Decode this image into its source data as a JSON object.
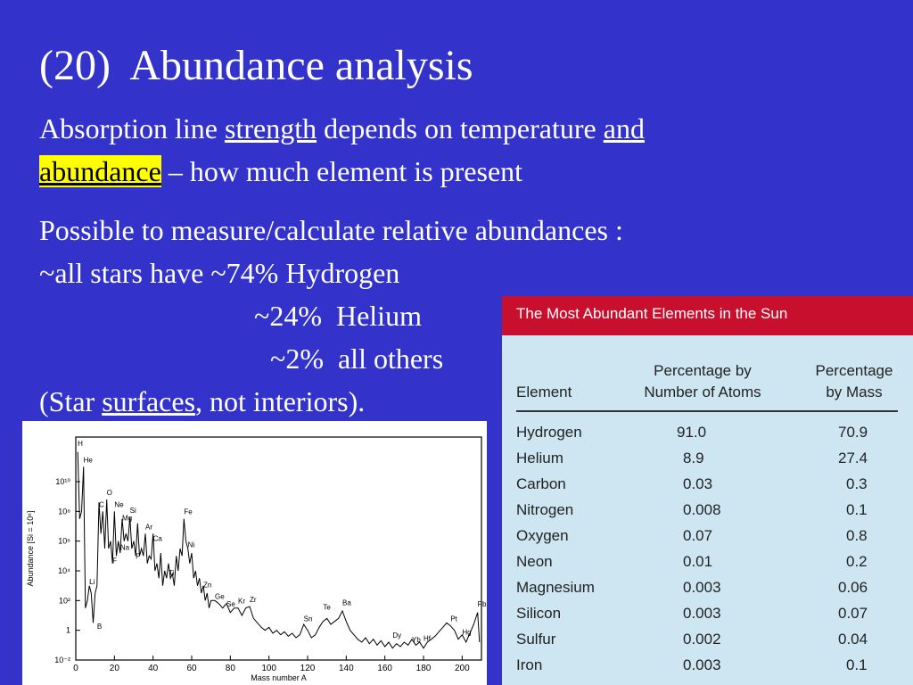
{
  "slide": {
    "title": "(20)  Abundance analysis",
    "line1": {
      "a": "Absorption line ",
      "b": "strength",
      "c": " depends on temperature ",
      "d": "and"
    },
    "line2": {
      "a": "abundance",
      "b": " – how much element is present"
    },
    "line3": "Possible to measure/calculate relative abundances :",
    "line4": "~all stars have ~74% Hydrogen",
    "line5": "~24%  Helium",
    "line6": "~2%  all others",
    "line7": {
      "a": "(Star ",
      "b": "surfaces",
      "c": ", not interiors)."
    },
    "highlight_color": "#ffff00",
    "background_color": "#3333cc"
  },
  "table": {
    "title": "The Most Abundant Elements in the Sun",
    "header_color": "#c8102e",
    "columns": {
      "element": "Element",
      "atoms_line1": "Percentage by",
      "atoms_line2": "Number of Atoms",
      "mass_line1": "Percentage",
      "mass_line2": "by Mass"
    },
    "rows": [
      {
        "element": "Hydrogen",
        "atoms": "91.0",
        "mass": "70.9"
      },
      {
        "element": "Helium",
        "atoms": "8.9",
        "mass": "27.4"
      },
      {
        "element": "Carbon",
        "atoms": "0.03",
        "mass": "0.3"
      },
      {
        "element": "Nitrogen",
        "atoms": "0.008",
        "mass": "0.1"
      },
      {
        "element": "Oxygen",
        "atoms": "0.07",
        "mass": "0.8"
      },
      {
        "element": "Neon",
        "atoms": "0.01",
        "mass": "0.2"
      },
      {
        "element": "Magnesium",
        "atoms": "0.003",
        "mass": "0.06"
      },
      {
        "element": "Silicon",
        "atoms": "0.003",
        "mass": "0.07"
      },
      {
        "element": "Sulfur",
        "atoms": "0.002",
        "mass": "0.04"
      },
      {
        "element": "Iron",
        "atoms": "0.003",
        "mass": "0.1"
      }
    ]
  },
  "chart_data": {
    "type": "line",
    "xlabel": "Mass number A",
    "ylabel": "Abundance [Si = 10⁶]",
    "xlim": [
      0,
      210
    ],
    "ylim_log10": [
      -2,
      13
    ],
    "x_ticks": [
      "0",
      "20",
      "40",
      "60",
      "80",
      "100",
      "120",
      "140",
      "160",
      "180",
      "200"
    ],
    "y_ticks": [
      "10⁻²",
      "1",
      "10²",
      "10⁴",
      "10⁶",
      "10⁸",
      "10¹⁰"
    ],
    "series": [
      {
        "log10_values": [
          [
            1,
            12.0
          ],
          [
            2,
            7.5
          ],
          [
            3,
            8.0
          ],
          [
            4,
            11.0
          ],
          [
            5,
            1.5
          ],
          [
            6,
            2.0
          ],
          [
            7,
            3.0
          ],
          [
            8,
            2.5
          ],
          [
            9,
            0.5
          ],
          [
            10,
            2.5
          ],
          [
            11,
            3.0
          ],
          [
            12,
            8.6
          ],
          [
            13,
            6.5
          ],
          [
            14,
            8.0
          ],
          [
            15,
            5.5
          ],
          [
            16,
            8.8
          ],
          [
            17,
            5.5
          ],
          [
            18,
            6.0
          ],
          [
            19,
            4.5
          ],
          [
            20,
            8.0
          ],
          [
            21,
            5.0
          ],
          [
            22,
            6.0
          ],
          [
            23,
            5.2
          ],
          [
            24,
            7.5
          ],
          [
            25,
            6.0
          ],
          [
            26,
            6.5
          ],
          [
            27,
            6.0
          ],
          [
            28,
            7.6
          ],
          [
            29,
            5.5
          ],
          [
            30,
            6.0
          ],
          [
            31,
            5.0
          ],
          [
            32,
            7.2
          ],
          [
            33,
            5.0
          ],
          [
            34,
            5.5
          ],
          [
            35,
            5.0
          ],
          [
            36,
            6.5
          ],
          [
            37,
            4.5
          ],
          [
            38,
            5.0
          ],
          [
            39,
            4.8
          ],
          [
            40,
            6.5
          ],
          [
            41,
            4.0
          ],
          [
            42,
            4.5
          ],
          [
            43,
            3.5
          ],
          [
            44,
            5.2
          ],
          [
            45,
            3.0
          ],
          [
            46,
            4.0
          ],
          [
            47,
            3.5
          ],
          [
            48,
            4.5
          ],
          [
            49,
            3.5
          ],
          [
            50,
            3.8
          ],
          [
            51,
            3.0
          ],
          [
            52,
            5.0
          ],
          [
            53,
            4.0
          ],
          [
            54,
            5.5
          ],
          [
            55,
            5.0
          ],
          [
            56,
            7.5
          ],
          [
            57,
            6.0
          ],
          [
            58,
            5.5
          ],
          [
            59,
            4.5
          ],
          [
            60,
            5.2
          ],
          [
            61,
            3.5
          ],
          [
            62,
            4.0
          ],
          [
            63,
            3.0
          ],
          [
            64,
            3.5
          ],
          [
            65,
            2.5
          ],
          [
            66,
            3.0
          ],
          [
            67,
            2.0
          ],
          [
            68,
            2.5
          ],
          [
            69,
            1.5
          ],
          [
            70,
            2.0
          ],
          [
            72,
            2.0
          ],
          [
            74,
            1.8
          ],
          [
            76,
            1.5
          ],
          [
            78,
            1.8
          ],
          [
            80,
            1.2
          ],
          [
            82,
            1.5
          ],
          [
            84,
            1.5
          ],
          [
            86,
            1.0
          ],
          [
            88,
            1.5
          ],
          [
            90,
            1.6
          ],
          [
            92,
            0.8
          ],
          [
            94,
            0.5
          ],
          [
            96,
            0.2
          ],
          [
            98,
            0.0
          ],
          [
            100,
            0.2
          ],
          [
            102,
            -0.2
          ],
          [
            104,
            0.0
          ],
          [
            106,
            -0.3
          ],
          [
            108,
            -0.1
          ],
          [
            110,
            -0.4
          ],
          [
            112,
            -0.2
          ],
          [
            114,
            -0.5
          ],
          [
            116,
            -0.3
          ],
          [
            118,
            0.4
          ],
          [
            120,
            0.0
          ],
          [
            122,
            -0.5
          ],
          [
            124,
            -0.3
          ],
          [
            126,
            0.2
          ],
          [
            128,
            0.6
          ],
          [
            130,
            0.8
          ],
          [
            132,
            0.4
          ],
          [
            134,
            0.6
          ],
          [
            136,
            0.8
          ],
          [
            138,
            1.3
          ],
          [
            140,
            0.6
          ],
          [
            142,
            0.0
          ],
          [
            144,
            -0.3
          ],
          [
            146,
            -0.6
          ],
          [
            148,
            -0.8
          ],
          [
            150,
            -0.5
          ],
          [
            152,
            -0.9
          ],
          [
            154,
            -0.6
          ],
          [
            156,
            -1.0
          ],
          [
            158,
            -0.7
          ],
          [
            160,
            -1.1
          ],
          [
            162,
            -0.8
          ],
          [
            164,
            -1.2
          ],
          [
            166,
            -0.9
          ],
          [
            168,
            -1.1
          ],
          [
            170,
            -0.8
          ],
          [
            172,
            -1.0
          ],
          [
            174,
            -0.6
          ],
          [
            176,
            -1.0
          ],
          [
            178,
            -0.8
          ],
          [
            180,
            -1.2
          ],
          [
            182,
            -0.8
          ],
          [
            184,
            -0.6
          ],
          [
            186,
            -0.4
          ],
          [
            188,
            -0.1
          ],
          [
            190,
            0.2
          ],
          [
            192,
            0.5
          ],
          [
            194,
            0.3
          ],
          [
            196,
            0.0
          ],
          [
            198,
            -0.6
          ],
          [
            200,
            -0.3
          ],
          [
            202,
            -0.8
          ],
          [
            204,
            -0.2
          ],
          [
            206,
            0.4
          ],
          [
            208,
            1.2
          ],
          [
            209,
            -0.8
          ]
        ]
      }
    ],
    "annotations": [
      {
        "text": "H",
        "x": 1,
        "y": 12.4
      },
      {
        "text": "He",
        "x": 4,
        "y": 11.3
      },
      {
        "text": "Li",
        "x": 7,
        "y": 3.1
      },
      {
        "text": "B",
        "x": 11,
        "y": 0.1
      },
      {
        "text": "C",
        "x": 12,
        "y": 8.3
      },
      {
        "text": "O",
        "x": 16,
        "y": 9.1
      },
      {
        "text": "Ne",
        "x": 20,
        "y": 8.3
      },
      {
        "text": "Mg",
        "x": 24,
        "y": 7.4
      },
      {
        "text": "Si",
        "x": 28,
        "y": 7.9
      },
      {
        "text": "Na",
        "x": 23,
        "y": 5.4
      },
      {
        "text": "Ar",
        "x": 36,
        "y": 6.8
      },
      {
        "text": "Ca",
        "x": 40,
        "y": 6.0
      },
      {
        "text": "F",
        "x": 19,
        "y": 4.5
      },
      {
        "text": "P",
        "x": 31,
        "y": 4.8
      },
      {
        "text": "Ti",
        "x": 48,
        "y": 3.7
      },
      {
        "text": "Fe",
        "x": 56,
        "y": 7.8
      },
      {
        "text": "Ni",
        "x": 58,
        "y": 5.6
      },
      {
        "text": "Zn",
        "x": 66,
        "y": 2.9
      },
      {
        "text": "Ge",
        "x": 72,
        "y": 2.1
      },
      {
        "text": "Se",
        "x": 78,
        "y": 1.6
      },
      {
        "text": "Kr",
        "x": 84,
        "y": 1.8
      },
      {
        "text": "Zr",
        "x": 90,
        "y": 1.9
      },
      {
        "text": "Sn",
        "x": 118,
        "y": 0.6
      },
      {
        "text": "Te",
        "x": 128,
        "y": 1.4
      },
      {
        "text": "Ba",
        "x": 138,
        "y": 1.7
      },
      {
        "text": "Dy",
        "x": 164,
        "y": -0.5
      },
      {
        "text": "Yb",
        "x": 174,
        "y": -0.8
      },
      {
        "text": "Hf",
        "x": 180,
        "y": -0.7
      },
      {
        "text": "Pt",
        "x": 194,
        "y": 0.6
      },
      {
        "text": "Hg",
        "x": 200,
        "y": -0.3
      },
      {
        "text": "Pb",
        "x": 208,
        "y": 1.6
      }
    ]
  }
}
